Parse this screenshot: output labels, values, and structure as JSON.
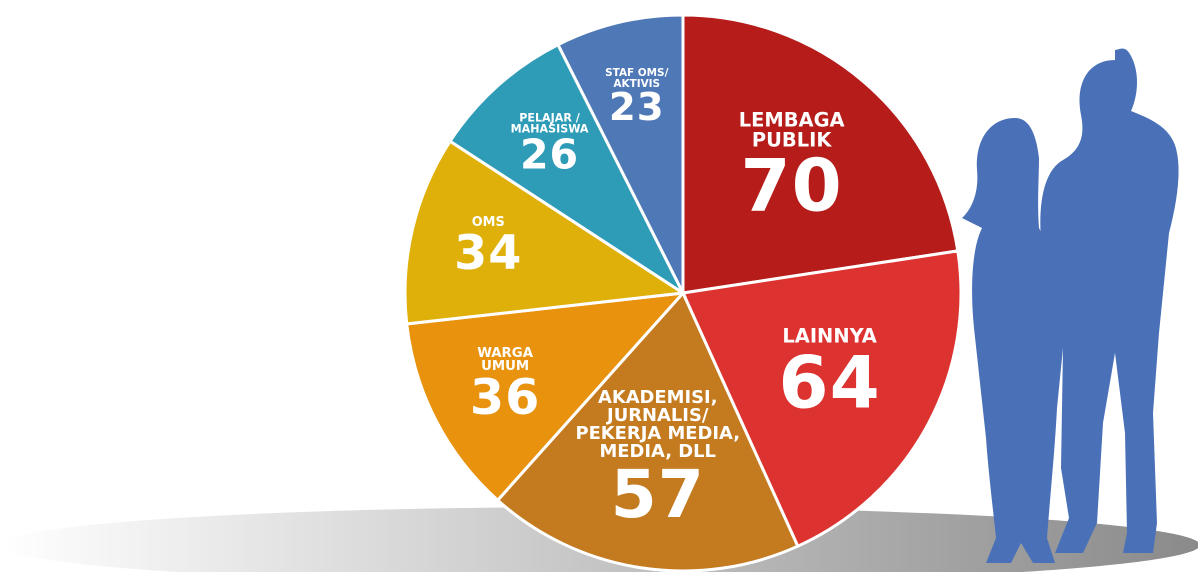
{
  "chart_data": {
    "type": "pie",
    "categories": [
      "LEMBAGA\nPUBLIK",
      "LAINNYA",
      "AKADEMISI,\nJURNALIS/\nPEKERJA MEDIA,\nMEDIA, DLL",
      "WARGA\nUMUM",
      "OMS",
      "PELAJAR /\nMAHASISWA",
      "STAF OMS/\nAKTIVIS"
    ],
    "values": [
      70,
      64,
      57,
      36,
      34,
      26,
      23
    ],
    "colors": [
      "#b51c1a",
      "#dc3230",
      "#c47a1f",
      "#e8920e",
      "#e0b00a",
      "#2f9cb7",
      "#4f78b6"
    ]
  }
}
